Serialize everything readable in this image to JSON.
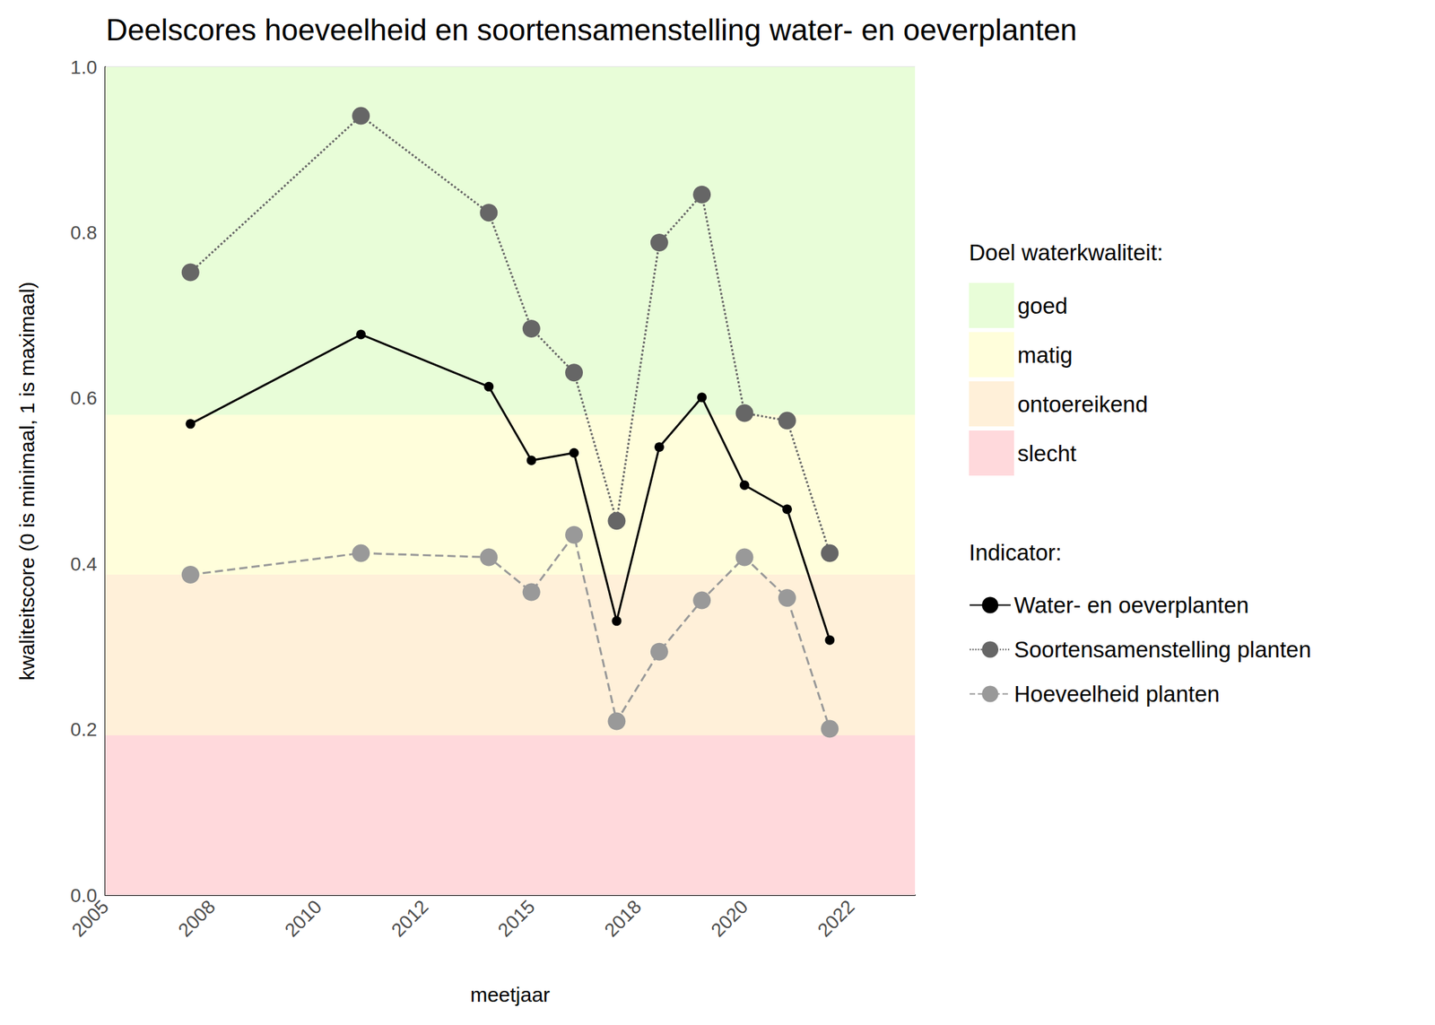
{
  "chart_data": {
    "type": "line",
    "title": "Deelscores hoeveelheid en soortensamenstelling water- en oeverplanten",
    "x_label": "meetjaar",
    "y_label": "kwaliteitscore (0 is minimaal, 1 is maximaal)",
    "x": [
      2007.0,
      2011.0,
      2014.0,
      2015.0,
      2016.0,
      2017.0,
      2018.0,
      2019.0,
      2020.0,
      2021.0,
      2022.0
    ],
    "xlim": [
      2005,
      2024
    ],
    "xticks": [
      2005,
      {
        "value": 2007.5,
        "label": "2008"
      },
      2010,
      {
        "value": 2012.5,
        "label": "2012"
      },
      2015,
      {
        "value": 2017.5,
        "label": "2018"
      },
      2020,
      {
        "value": 2022.5,
        "label": "2022"
      }
    ],
    "ylim": [
      0,
      1
    ],
    "yticks": [
      {
        "value": 0,
        "label": "0.0"
      },
      0.2,
      0.4,
      0.6,
      0.8,
      {
        "value": 1,
        "label": "1.0"
      }
    ],
    "grid": true,
    "legend": "right",
    "band_legend_title": "Doel waterkwaliteit:",
    "series_legend_title": "Indicator:",
    "bands": [
      {
        "name": "goed",
        "color": "#e8fdd8",
        "from": 0.58,
        "to": 1.0
      },
      {
        "name": "matig",
        "color": "#fffedb",
        "from": 0.387,
        "to": 0.58
      },
      {
        "name": "ontoereikend",
        "color": "#fff0d9",
        "from": 0.193,
        "to": 0.387
      },
      {
        "name": "slecht",
        "color": "#ffd9dc",
        "from": 0.0,
        "to": 0.193
      }
    ],
    "series": [
      {
        "name": "Water- en oeverplanten",
        "color": "#000000",
        "line_style": "solid",
        "marker": "circle",
        "values": [
          0.569,
          0.677,
          0.614,
          0.525,
          0.534,
          0.331,
          0.541,
          0.601,
          0.495,
          0.466,
          0.308
        ]
      },
      {
        "name": "Soortensamenstelling planten",
        "color": "#666666",
        "line_style": "dotted",
        "marker": "circle",
        "values": [
          0.752,
          0.941,
          0.824,
          0.684,
          0.631,
          0.452,
          0.788,
          0.846,
          0.582,
          0.573,
          0.413
        ]
      },
      {
        "name": "Hoeveelheid planten",
        "color": "#999999",
        "line_style": "dashed",
        "marker": "circle",
        "values": [
          0.387,
          0.413,
          0.408,
          0.366,
          0.435,
          0.21,
          0.294,
          0.356,
          0.408,
          0.359,
          0.201
        ]
      }
    ]
  }
}
